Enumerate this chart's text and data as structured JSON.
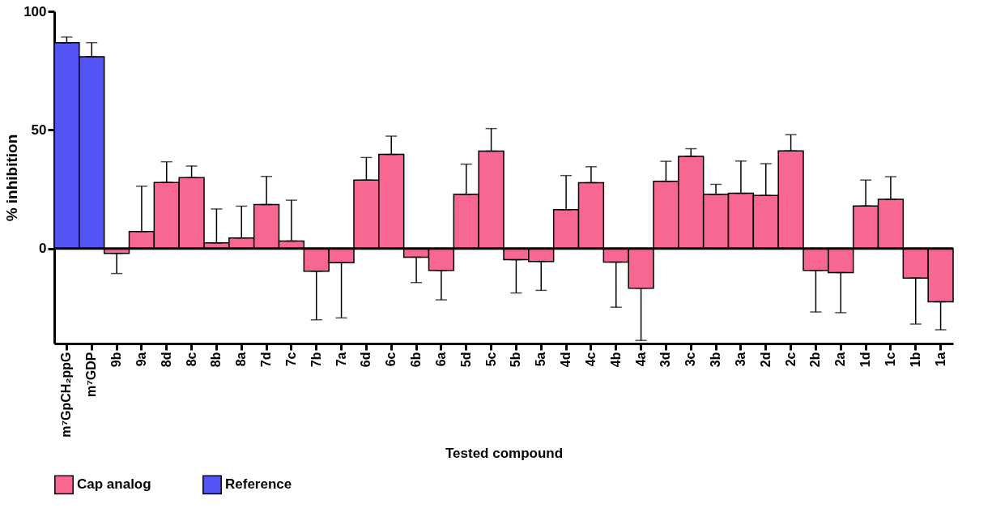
{
  "chart_data": {
    "type": "bar",
    "xlabel": "Tested compound",
    "ylabel": "% inhibition",
    "categories": [
      "m⁷GpCH₂ppG",
      "m⁷GDP",
      "9b",
      "9a",
      "8d",
      "8c",
      "8b",
      "8a",
      "7d",
      "7c",
      "7b",
      "7a",
      "6d",
      "6c",
      "6b",
      "6a",
      "5d",
      "5c",
      "5b",
      "5a",
      "4d",
      "4c",
      "4b",
      "4a",
      "3d",
      "3c",
      "3b",
      "3a",
      "2d",
      "2c",
      "2b",
      "2a",
      "1d",
      "1c",
      "1b",
      "1a"
    ],
    "series": [
      {
        "name": "Cap analog",
        "color": "#f76792",
        "values": [
          null,
          null,
          -2.0,
          7.2,
          27.9,
          29.9,
          2.4,
          4.5,
          18.6,
          3.2,
          -9.5,
          -5.9,
          28.9,
          39.7,
          -3.6,
          -9.2,
          22.9,
          41.1,
          -4.7,
          -5.4,
          16.4,
          27.8,
          -5.7,
          -16.7,
          28.4,
          38.9,
          22.9,
          23.3,
          22.4,
          41.2,
          -9.2,
          -10.1,
          18.0,
          20.8,
          -12.4,
          -22.4
        ],
        "errors": [
          null,
          null,
          [
            -10.5,
            -2.0
          ],
          [
            7.2,
            26.3
          ],
          [
            27.9,
            36.6
          ],
          [
            29.9,
            34.8
          ],
          [
            2.4,
            16.7
          ],
          [
            4.5,
            17.9
          ],
          [
            18.6,
            30.4
          ],
          [
            3.2,
            20.4
          ],
          [
            -30.0,
            -9.5
          ],
          [
            -29.2,
            -5.9
          ],
          [
            28.9,
            38.4
          ],
          [
            39.7,
            47.4
          ],
          [
            -14.3,
            -3.6
          ],
          [
            -21.6,
            -9.2
          ],
          [
            22.9,
            35.6
          ],
          [
            41.1,
            50.6
          ],
          [
            -18.7,
            -4.7
          ],
          [
            -17.6,
            -5.4
          ],
          [
            16.4,
            30.8
          ],
          [
            27.8,
            34.5
          ],
          [
            -24.7,
            -5.7
          ],
          [
            -38.7,
            -16.7
          ],
          [
            28.4,
            36.8
          ],
          [
            38.9,
            42.1
          ],
          [
            22.9,
            27.1
          ],
          [
            23.3,
            36.9
          ],
          [
            22.4,
            35.8
          ],
          [
            41.2,
            48.0
          ],
          [
            -26.7,
            -9.2
          ],
          [
            -27.0,
            -10.1
          ],
          [
            18.0,
            28.9
          ],
          [
            20.8,
            30.3
          ],
          [
            -31.8,
            -12.4
          ],
          [
            -34.2,
            -22.4
          ]
        ]
      },
      {
        "name": "Reference",
        "color": "#5555f5",
        "values": [
          86.8,
          80.9,
          null,
          null,
          null,
          null,
          null,
          null,
          null,
          null,
          null,
          null,
          null,
          null,
          null,
          null,
          null,
          null,
          null,
          null,
          null,
          null,
          null,
          null,
          null,
          null,
          null,
          null,
          null,
          null,
          null,
          null,
          null,
          null,
          null,
          null
        ],
        "errors": [
          [
            86.8,
            89.2
          ],
          [
            80.9,
            86.8
          ],
          null,
          null,
          null,
          null,
          null,
          null,
          null,
          null,
          null,
          null,
          null,
          null,
          null,
          null,
          null,
          null,
          null,
          null,
          null,
          null,
          null,
          null,
          null,
          null,
          null,
          null,
          null,
          null,
          null,
          null,
          null,
          null,
          null,
          null
        ]
      }
    ],
    "ylim": [
      -40,
      100
    ],
    "yticks": [
      0,
      50,
      100
    ],
    "grid": false,
    "legend": "bottom",
    "ref_lines": [
      {
        "axis": "y",
        "value": 0
      }
    ]
  }
}
